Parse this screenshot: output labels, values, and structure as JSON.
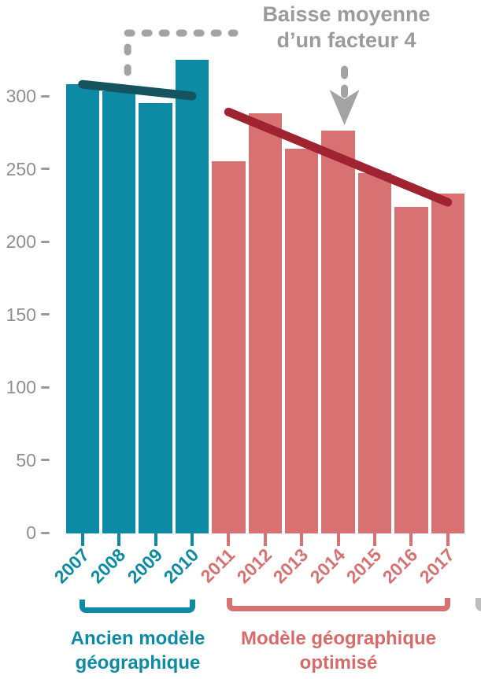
{
  "annotation": {
    "line1": "Baisse moyenne",
    "line2": "d’un facteur 4"
  },
  "colors": {
    "old_model_bar": "#0d8ba4",
    "old_model_trend": "#15545f",
    "new_model_bar": "#d87272",
    "new_model_trend": "#a02331",
    "annotation_grey": "#a3a3a3",
    "axis_grey": "#8f8f8f"
  },
  "chart_data": {
    "type": "bar",
    "title": "",
    "xlabel": "",
    "ylabel": "",
    "x": [
      2007,
      2008,
      2009,
      2010,
      2011,
      2012,
      2013,
      2014,
      2015,
      2016,
      2017
    ],
    "series": [
      {
        "name": "Ancien modèle géographique",
        "years": [
          2007,
          2008,
          2009,
          2010
        ],
        "values": [
          308,
          303,
          295,
          325
        ],
        "color": "#0d8ba4",
        "trend": {
          "from_year": 2007,
          "to_year": 2010,
          "from_value": 308,
          "to_value": 300,
          "color": "#15545f"
        }
      },
      {
        "name": "Modèle géographique optimisé",
        "years": [
          2011,
          2012,
          2013,
          2014,
          2015,
          2016,
          2017
        ],
        "values": [
          255,
          288,
          264,
          276,
          247,
          224,
          233
        ],
        "color": "#d87272",
        "trend": {
          "from_year": 2011,
          "to_year": 2017,
          "from_value": 289,
          "to_value": 227,
          "color": "#a02331"
        }
      }
    ],
    "yticks": [
      0,
      50,
      100,
      150,
      200,
      250,
      300
    ],
    "ylim": [
      0,
      330
    ],
    "grid": false,
    "legend_position": "bottom",
    "legend": [
      {
        "lines": [
          "Ancien modèle",
          "géographique"
        ],
        "color": "#0d8ba4"
      },
      {
        "lines": [
          "Modèle géographique",
          "optimisé"
        ],
        "color": "#d86a6a"
      }
    ],
    "annotation_target_year": 2014,
    "connector_target_year": 2008
  }
}
